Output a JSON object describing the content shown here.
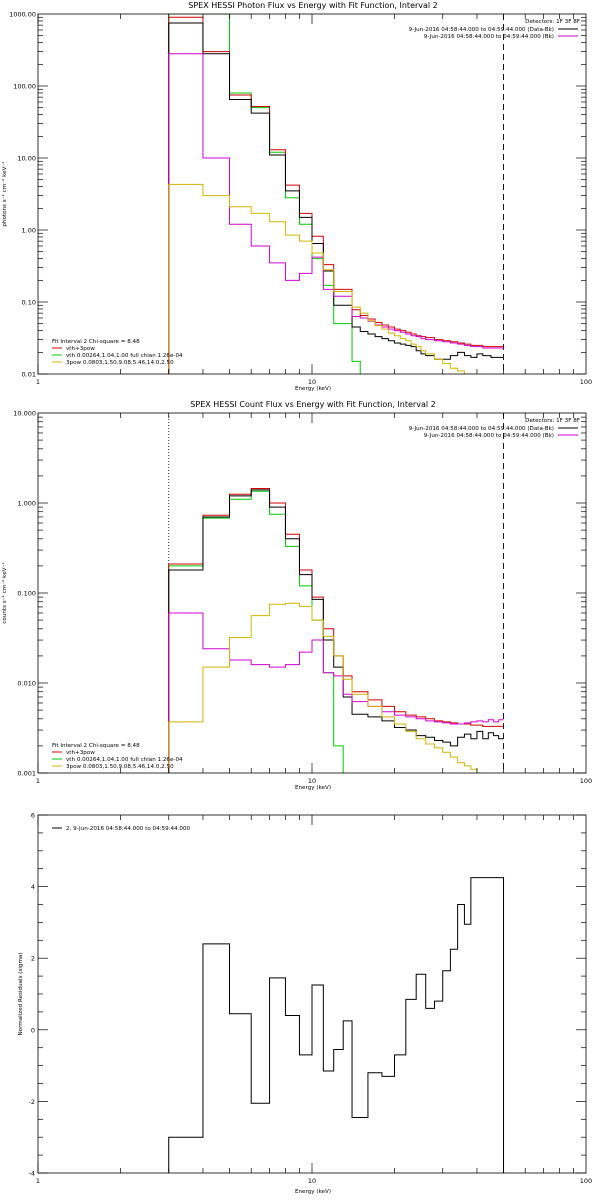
{
  "chart_data": [
    {
      "type": "line",
      "title": "SPEX HESSI Photon Flux vs Energy with Fit Function, Interval 2",
      "xlabel": "Energy (keV)",
      "ylabel": "photons s⁻¹ cm⁻² keV⁻¹",
      "xscale": "log",
      "yscale": "log",
      "xlim": [
        1,
        100
      ],
      "ylim": [
        0.01,
        1000
      ],
      "x_ticks": [
        "1",
        "10",
        "100"
      ],
      "y_ticks": [
        "0.01",
        "0.10",
        "1.00",
        "10.00",
        "100.00",
        "1000.00"
      ],
      "fit_range_low": 3.0,
      "fit_range_high": 50.0,
      "detectors": "Detectors: 1F 3F 8F",
      "legend_right": [
        {
          "label": "9-Jun-2016 04:58:44.000 to 04:59:44.000 (Data-Bk)",
          "color": "#000000"
        },
        {
          "label": "9-Jun-2016 04:58:44.000 to 04:59:44.000 (Bk)",
          "color": "#d400d4"
        }
      ],
      "legend_left": [
        {
          "label": "Fit Interval 2   Chi-square = 8.48",
          "color": ""
        },
        {
          "label": "vth+3pow",
          "color": "#d40000"
        },
        {
          "label": "vth 0.00264,1.04,1.00  full chian 1.26e-04",
          "color": "#00cc00"
        },
        {
          "label": "3pow 0.0803,1.50,9.08,5.46,14.0,2.50",
          "color": "#d4b400"
        }
      ],
      "edges": [
        3.0,
        3.5,
        4.0,
        4.5,
        5.0,
        5.5,
        6.0,
        6.5,
        7.0,
        7.5,
        8.0,
        8.5,
        9.0,
        9.5,
        10.0,
        10.5,
        11.0,
        11.5,
        12.0,
        13.0,
        14.0,
        15.0,
        16.0,
        17.0,
        18.0,
        19.0,
        20.0,
        21.0,
        22.0,
        23.0,
        24.0,
        25.0,
        26.0,
        28.0,
        30.0,
        32.0,
        34.0,
        36.0,
        38.0,
        40.0,
        42.0,
        45.0,
        50.0
      ],
      "series": [
        {
          "color": "#000000",
          "values": [
            750,
            750,
            280,
            280,
            65,
            65,
            42,
            42,
            11,
            11,
            3.5,
            3.5,
            1.5,
            1.5,
            0.65,
            0.65,
            0.27,
            0.27,
            0.09,
            0.09,
            0.045,
            0.039,
            0.036,
            0.033,
            0.031,
            0.029,
            0.027,
            0.026,
            0.025,
            0.024,
            0.021,
            0.019,
            0.018,
            0.016,
            0.016,
            0.018,
            0.02,
            0.018,
            0.017,
            0.019,
            0.018,
            0.017
          ]
        },
        {
          "color": "#d40000",
          "values": [
            900,
            900,
            300,
            300,
            75,
            75,
            52,
            52,
            13,
            13,
            4.2,
            4.2,
            1.7,
            1.7,
            0.82,
            0.82,
            0.33,
            0.33,
            0.15,
            0.15,
            0.078,
            0.065,
            0.058,
            0.052,
            0.048,
            0.045,
            0.042,
            0.04,
            0.038,
            0.036,
            0.034,
            0.033,
            0.032,
            0.03,
            0.029,
            0.028,
            0.027,
            0.026,
            0.025,
            0.025,
            0.024,
            0.024
          ]
        },
        {
          "color": "#d400d4",
          "values": [
            280,
            280,
            10,
            10,
            1.2,
            1.2,
            0.6,
            0.6,
            0.35,
            0.35,
            0.2,
            0.2,
            0.25,
            0.25,
            0.42,
            0.42,
            0.15,
            0.15,
            0.12,
            0.12,
            0.063,
            0.06,
            0.054,
            0.048,
            0.045,
            0.042,
            0.04,
            0.038,
            0.036,
            0.034,
            0.033,
            0.031,
            0.03,
            0.029,
            0.028,
            0.027,
            0.026,
            0.025,
            0.024,
            0.024,
            0.023,
            0.023
          ]
        },
        {
          "color": "#00cc00",
          "values": [
            1000,
            1000,
            1000,
            1000,
            80,
            80,
            50,
            50,
            12,
            12,
            2.8,
            2.8,
            1.2,
            1.2,
            0.4,
            0.4,
            0.17,
            0.17,
            0.05,
            0.05,
            0.015,
            0.009,
            0.009,
            0.009,
            0.009,
            0.009,
            0.009,
            0.009,
            0.009,
            0.009,
            0.009,
            0.009,
            0.009,
            0.009,
            0.009,
            0.009,
            0.009,
            0.009,
            0.009,
            0.009,
            0.009,
            0.009
          ]
        },
        {
          "color": "#d4b400",
          "values": [
            4.3,
            4.3,
            3.0,
            3.0,
            2.1,
            2.1,
            1.7,
            1.7,
            1.3,
            1.3,
            0.85,
            0.85,
            0.7,
            0.7,
            0.48,
            0.48,
            0.28,
            0.28,
            0.14,
            0.14,
            0.085,
            0.07,
            0.055,
            0.047,
            0.042,
            0.037,
            0.034,
            0.031,
            0.029,
            0.026,
            0.024,
            0.021,
            0.019,
            0.016,
            0.014,
            0.012,
            0.011,
            0.01,
            0.009,
            0.009,
            0.009,
            0.009
          ]
        }
      ]
    },
    {
      "type": "line",
      "title": "SPEX HESSI Count Flux vs Energy with Fit Function, Interval 2",
      "xlabel": "Energy (keV)",
      "ylabel": "counts s⁻¹ cm⁻² keV⁻¹",
      "xscale": "log",
      "yscale": "log",
      "xlim": [
        1,
        100
      ],
      "ylim": [
        0.001,
        10
      ],
      "x_ticks": [
        "1",
        "10",
        "100"
      ],
      "y_ticks": [
        "0.001",
        "0.010",
        "0.100",
        "1.000",
        "10.000"
      ],
      "fit_range_low": 3.0,
      "fit_range_high": 50.0,
      "detectors": "Detectors: 1F 3F 8F",
      "legend_right": [
        {
          "label": "9-Jun-2016 04:58:44.000 to 04:59:44.000 (Data-Bk)",
          "color": "#000000"
        },
        {
          "label": "9-Jun-2016 04:58:44.000 to 04:59:44.000 (Bk)",
          "color": "#d400d4"
        }
      ],
      "legend_left": [
        {
          "label": "Fit Interval 2   Chi-square = 8.48",
          "color": ""
        },
        {
          "label": "vth+3pow",
          "color": "#d40000"
        },
        {
          "label": "vth 0.00264,1.04,1.00  full chian 1.26e-04",
          "color": "#00cc00"
        },
        {
          "label": "3pow 0.0803,1.50,9.08,5.46,14.0,2.50",
          "color": "#d4b400"
        }
      ],
      "edges": [
        3.0,
        4.0,
        5.0,
        6.0,
        7.0,
        8.0,
        9.0,
        10.0,
        11.0,
        12.0,
        13.0,
        14.0,
        16.0,
        18.0,
        20.0,
        22.0,
        24.0,
        26.0,
        28.0,
        30.0,
        32.0,
        34.0,
        36.0,
        38.0,
        40.0,
        42.0,
        44.0,
        46.0,
        48.0,
        50.0
      ],
      "series": [
        {
          "color": "#000000",
          "values": [
            0.18,
            0.7,
            1.2,
            1.4,
            0.9,
            0.4,
            0.16,
            0.085,
            0.03,
            0.015,
            0.007,
            0.0045,
            0.0042,
            0.0038,
            0.0032,
            0.003,
            0.0026,
            0.0025,
            0.0023,
            0.0022,
            0.002,
            0.0025,
            0.0027,
            0.0024,
            0.0029,
            0.0024,
            0.0028,
            0.0026,
            0.0024
          ]
        },
        {
          "color": "#d40000",
          "values": [
            0.21,
            0.73,
            1.25,
            1.45,
            1.0,
            0.45,
            0.18,
            0.09,
            0.04,
            0.02,
            0.012,
            0.008,
            0.0065,
            0.0055,
            0.0048,
            0.0044,
            0.0042,
            0.004,
            0.0038,
            0.0037,
            0.0036,
            0.0035,
            0.0035,
            0.0034,
            0.0034,
            0.0033,
            0.0033,
            0.0033,
            0.0033
          ]
        },
        {
          "color": "#d400d4",
          "values": [
            0.06,
            0.024,
            0.018,
            0.016,
            0.015,
            0.016,
            0.022,
            0.03,
            0.013,
            0.012,
            0.0075,
            0.0062,
            0.0055,
            0.0048,
            0.0044,
            0.0042,
            0.004,
            0.0038,
            0.0037,
            0.0036,
            0.0035,
            0.0035,
            0.0036,
            0.0037,
            0.0038,
            0.0037,
            0.0039,
            0.0037,
            0.0039
          ]
        },
        {
          "color": "#00cc00",
          "values": [
            0.2,
            0.68,
            1.1,
            1.35,
            0.75,
            0.33,
            0.12,
            0.05,
            0.013,
            0.002,
            0.0008,
            0.0008,
            0.0008,
            0.0008,
            0.0008,
            0.0008,
            0.0008,
            0.0008,
            0.0008,
            0.0008,
            0.0008,
            0.0008,
            0.0008,
            0.0008,
            0.0008,
            0.0008,
            0.0008,
            0.0008,
            0.0008
          ]
        },
        {
          "color": "#d4b400",
          "values": [
            0.0037,
            0.015,
            0.032,
            0.056,
            0.075,
            0.077,
            0.071,
            0.05,
            0.033,
            0.02,
            0.011,
            0.0075,
            0.0055,
            0.0042,
            0.0035,
            0.0029,
            0.0024,
            0.0021,
            0.0019,
            0.0017,
            0.0015,
            0.0013,
            0.0012,
            0.0011,
            0.001,
            0.0009,
            0.0009,
            0.0009,
            0.0009
          ]
        }
      ]
    },
    {
      "type": "line",
      "title": "",
      "xlabel": "Energy (keV)",
      "ylabel": "Normalized Residuals (sigma)",
      "xscale": "log",
      "yscale": "linear",
      "xlim": [
        1,
        100
      ],
      "ylim": [
        -4,
        6
      ],
      "x_ticks": [
        "1",
        "10",
        "100"
      ],
      "y_ticks": [
        "-4",
        "-2",
        "0",
        "2",
        "4",
        "6"
      ],
      "legend": [
        {
          "label": "2, 9-Jun-2016 04:58:44.000 to 04:59:44.000",
          "color": "#000000"
        }
      ],
      "edges": [
        3.0,
        4.0,
        5.0,
        6.0,
        7.0,
        8.0,
        9.0,
        10.0,
        11.0,
        12.0,
        13.0,
        14.0,
        16.0,
        18.0,
        20.0,
        22.0,
        24.0,
        26.0,
        28.0,
        30.0,
        32.0,
        34.0,
        36.0,
        38.0,
        40.0,
        42.0,
        44.0,
        46.0,
        48.0,
        50.0
      ],
      "series": [
        {
          "color": "#000000",
          "values": [
            -3.0,
            2.4,
            0.45,
            -2.05,
            1.45,
            0.4,
            -0.7,
            1.25,
            -1.15,
            -0.55,
            0.25,
            -2.45,
            -1.2,
            -1.3,
            -0.7,
            0.85,
            1.55,
            0.6,
            0.8,
            1.65,
            2.25,
            3.5,
            2.95,
            4.25,
            4.25,
            4.25,
            4.25,
            4.25,
            4.25
          ]
        }
      ]
    }
  ]
}
